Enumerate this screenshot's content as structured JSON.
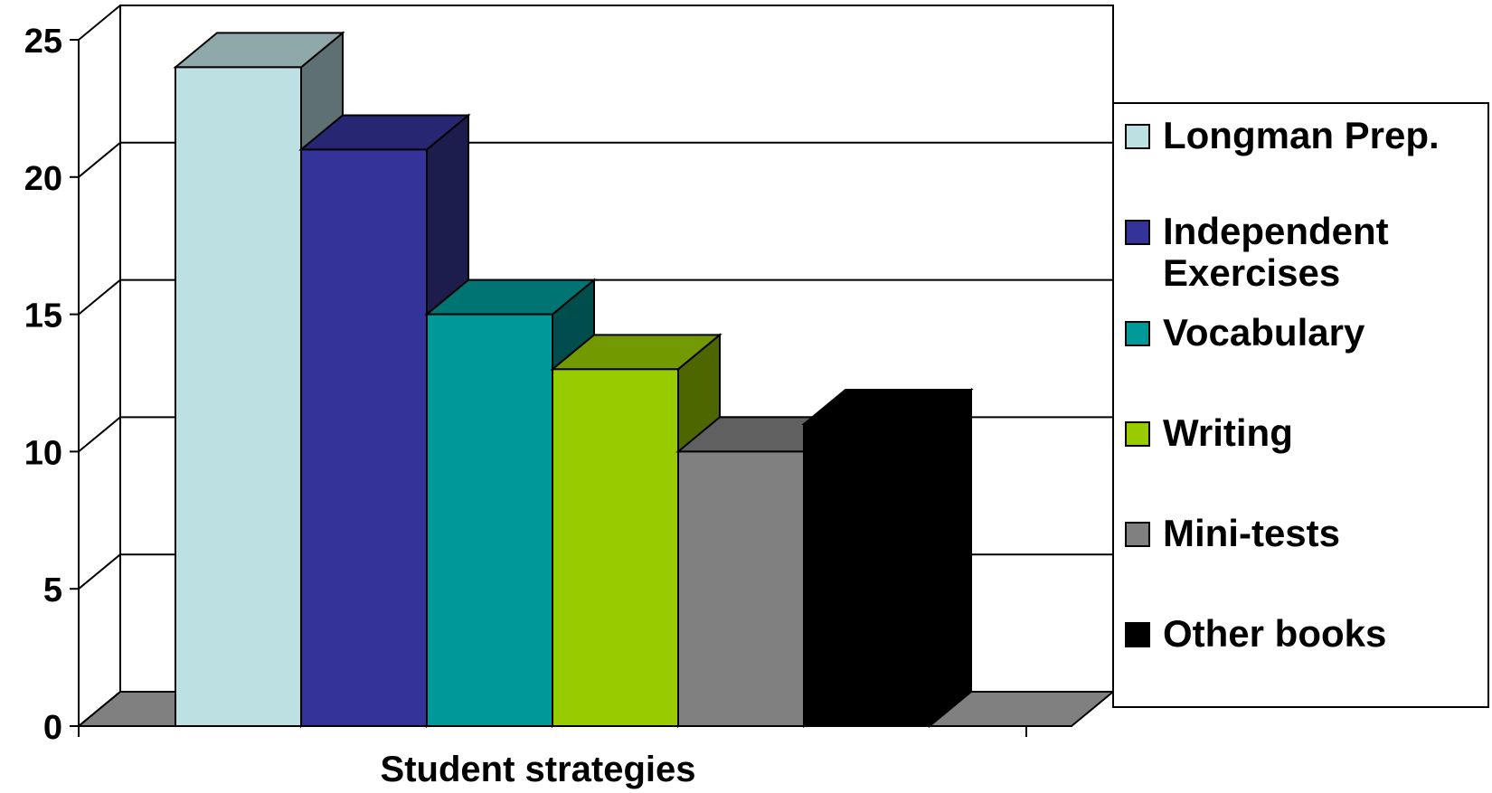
{
  "chart_data": {
    "type": "bar",
    "style": "3d",
    "xlabel": "Student strategies",
    "ylim": [
      0,
      25
    ],
    "y_ticks": [
      0,
      5,
      10,
      15,
      20,
      25
    ],
    "grid": true,
    "legend_position": "right",
    "series": [
      {
        "name": "Longman Prep.",
        "value": 24,
        "color": "#bde0e3",
        "top_color": "#8fa9aa",
        "side_color": "#5e7071"
      },
      {
        "name": "Independent Exercises",
        "value": 21,
        "color": "#333399",
        "top_color": "#262672",
        "side_color": "#1d1d4d"
      },
      {
        "name": "Vocabulary",
        "value": 15,
        "color": "#009999",
        "top_color": "#007373",
        "side_color": "#004d4d"
      },
      {
        "name": "Writing",
        "value": 13,
        "color": "#99cc00",
        "top_color": "#739900",
        "side_color": "#4d6600"
      },
      {
        "name": "Mini-tests",
        "value": 10,
        "color": "#808080",
        "top_color": "#606060",
        "side_color": "#404040"
      },
      {
        "name": "Other books",
        "value": 11,
        "color": "#000000",
        "top_color": "#000000",
        "side_color": "#000000"
      }
    ]
  }
}
